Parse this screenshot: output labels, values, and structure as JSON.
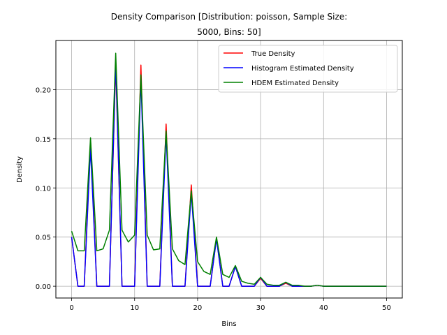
{
  "chart_data": {
    "type": "line",
    "title_line1": "Density Comparison [Distribution: poisson, Sample Size:",
    "title_line2": "5000, Bins: 50]",
    "xlabel": "Bins",
    "ylabel": "Density",
    "xlim": [
      -2.5,
      52.5
    ],
    "ylim": [
      -0.012,
      0.25
    ],
    "xticks": [
      0,
      10,
      20,
      30,
      40,
      50
    ],
    "yticks": [
      0.0,
      0.05,
      0.1,
      0.15,
      0.2
    ],
    "ytick_labels": [
      "0.00",
      "0.05",
      "0.10",
      "0.15",
      "0.20"
    ],
    "grid": true,
    "legend_position": "top-right",
    "x": [
      0,
      1,
      2,
      3,
      4,
      5,
      6,
      7,
      8,
      9,
      10,
      11,
      12,
      13,
      14,
      15,
      16,
      17,
      18,
      19,
      20,
      21,
      22,
      23,
      24,
      25,
      26,
      27,
      28,
      29,
      30,
      31,
      32,
      33,
      34,
      35,
      36,
      37,
      38,
      39,
      40,
      41,
      42,
      43,
      44,
      45,
      46,
      47,
      48,
      49,
      50
    ],
    "series": [
      {
        "name": "True Density",
        "color": "#ff0000",
        "values": [
          0.05,
          0,
          0,
          0.149,
          0,
          0,
          0,
          0.225,
          0,
          0,
          0,
          0.225,
          0,
          0,
          0,
          0.165,
          0,
          0,
          0,
          0.103,
          0,
          0,
          0,
          0.049,
          0,
          0,
          0.02,
          0,
          0,
          0,
          0.008,
          0,
          0,
          0,
          0.003,
          0,
          0,
          0,
          0,
          0.001,
          0,
          0,
          0,
          0,
          0,
          0,
          0,
          0,
          0,
          0,
          0
        ]
      },
      {
        "name": "Histogram Estimated Density",
        "color": "#0000ff",
        "values": [
          0.05,
          0,
          0,
          0.14,
          0,
          0,
          0,
          0.229,
          0,
          0,
          0,
          0.212,
          0,
          0,
          0,
          0.155,
          0,
          0,
          0,
          0.095,
          0,
          0,
          0,
          0.048,
          0,
          0,
          0.02,
          0,
          0,
          0,
          0.009,
          0,
          0,
          0,
          0.004,
          0,
          0,
          0,
          0,
          0.001,
          0,
          0,
          0,
          0,
          0,
          0,
          0,
          0,
          0,
          0,
          0
        ]
      },
      {
        "name": "HDEM Estimated Density",
        "color": "#008000",
        "values": [
          0.056,
          0.036,
          0.036,
          0.151,
          0.036,
          0.038,
          0.057,
          0.237,
          0.057,
          0.045,
          0.052,
          0.215,
          0.052,
          0.037,
          0.038,
          0.158,
          0.038,
          0.026,
          0.022,
          0.097,
          0.025,
          0.015,
          0.012,
          0.05,
          0.012,
          0.009,
          0.021,
          0.005,
          0.003,
          0.002,
          0.009,
          0.002,
          0.001,
          0.001,
          0.004,
          0.001,
          0.001,
          0,
          0,
          0.001,
          0,
          0,
          0,
          0,
          0,
          0,
          0,
          0,
          0,
          0,
          0
        ]
      }
    ]
  }
}
